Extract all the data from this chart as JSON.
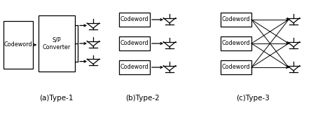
{
  "background_color": "#ffffff",
  "fig_width": 4.74,
  "fig_height": 1.64,
  "dpi": 100,
  "label_a": "(a)Type-1",
  "label_b": "(b)Type-2",
  "label_c": "(c)Type-3",
  "label_fontsize": 7.5,
  "cw_fontsize": 5.8,
  "sp_fontsize": 5.8,
  "line_color": "#000000",
  "box_edge_color": "#000000",
  "box_face_color": "#ffffff",
  "lw": 0.9,
  "ant_lw": 0.9
}
